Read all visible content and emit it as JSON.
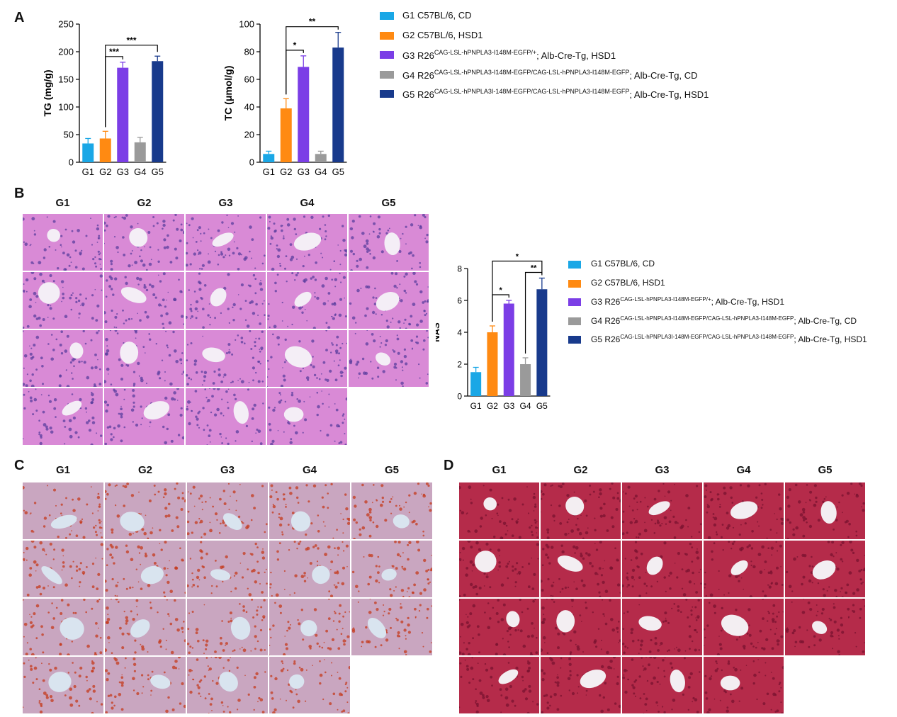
{
  "panels": {
    "a": "A",
    "b": "B",
    "c": "C",
    "d": "D"
  },
  "colors": {
    "g1": "#1aa7e6",
    "g2": "#ff8a12",
    "g3": "#7b3ee6",
    "g4": "#9a9a9a",
    "g5": "#183a8c",
    "he_bg": "#d98ad6",
    "ro_bg": "#c9a6c0",
    "ms_bg": "#b52b4a"
  },
  "legend": [
    {
      "key": "g1",
      "text": "G1 C57BL/6, CD",
      "sup": "",
      "tail": ""
    },
    {
      "key": "g2",
      "text": "G2 C57BL/6, HSD1",
      "sup": "",
      "tail": ""
    },
    {
      "key": "g3",
      "text": "G3 R26",
      "sup": "CAG-LSL-hPNPLA3-I148M-EGFP/+",
      "tail": "; Alb-Cre-Tg, HSD1"
    },
    {
      "key": "g4",
      "text": "G4 R26",
      "sup": "CAG-LSL-hPNPLA3-I148M-EGFP/CAG-LSL-hPNPLA3-I148M-EGFP",
      "tail": "; Alb-Cre-Tg, CD"
    },
    {
      "key": "g5",
      "text": "G5 R26",
      "sup": "CAG-LSL-hPNPLA3I-148M-EGFP/CAG-LSL-hPNPLA3-I148M-EGFP",
      "tail": "; Alb-Cre-Tg, HSD1"
    }
  ],
  "group_titles": [
    "G1",
    "G2",
    "G3",
    "G4",
    "G5"
  ],
  "chart_data": [
    {
      "id": "tg",
      "type": "bar",
      "categories": [
        "G1",
        "G2",
        "G3",
        "G4",
        "G5"
      ],
      "values": [
        34,
        43,
        171,
        36,
        183
      ],
      "errors": [
        9,
        13,
        10,
        9,
        9
      ],
      "ylabel": "TG (mg/g)",
      "ylim": [
        0,
        250
      ],
      "yticks": [
        0,
        50,
        100,
        150,
        200,
        250
      ],
      "brackets": [
        {
          "from": 1,
          "to": 2,
          "label": "***"
        },
        {
          "from": 1,
          "to": 4,
          "label": "***"
        }
      ]
    },
    {
      "id": "tc",
      "type": "bar",
      "categories": [
        "G1",
        "G2",
        "G3",
        "G4",
        "G5"
      ],
      "values": [
        6,
        39,
        69,
        6,
        83
      ],
      "errors": [
        2,
        7,
        8,
        2,
        11
      ],
      "ylabel": "TC (μmol/g)",
      "ylim": [
        0,
        100
      ],
      "yticks": [
        0,
        20,
        40,
        60,
        80,
        100
      ],
      "brackets": [
        {
          "from": 1,
          "to": 2,
          "label": "*"
        },
        {
          "from": 1,
          "to": 4,
          "label": "**"
        }
      ]
    },
    {
      "id": "nas",
      "type": "bar",
      "categories": [
        "G1",
        "G2",
        "G3",
        "G4",
        "G5"
      ],
      "values": [
        1.5,
        4.0,
        5.8,
        2.0,
        6.7
      ],
      "errors": [
        0.3,
        0.4,
        0.2,
        0.4,
        0.7
      ],
      "ylabel": "NAS",
      "ylim": [
        0,
        8
      ],
      "yticks": [
        0,
        2,
        4,
        6,
        8
      ],
      "brackets": [
        {
          "from": 1,
          "to": 2,
          "label": "*"
        },
        {
          "from": 3,
          "to": 4,
          "label": "**"
        },
        {
          "from": 1,
          "to": 4,
          "label": "*"
        }
      ]
    }
  ]
}
